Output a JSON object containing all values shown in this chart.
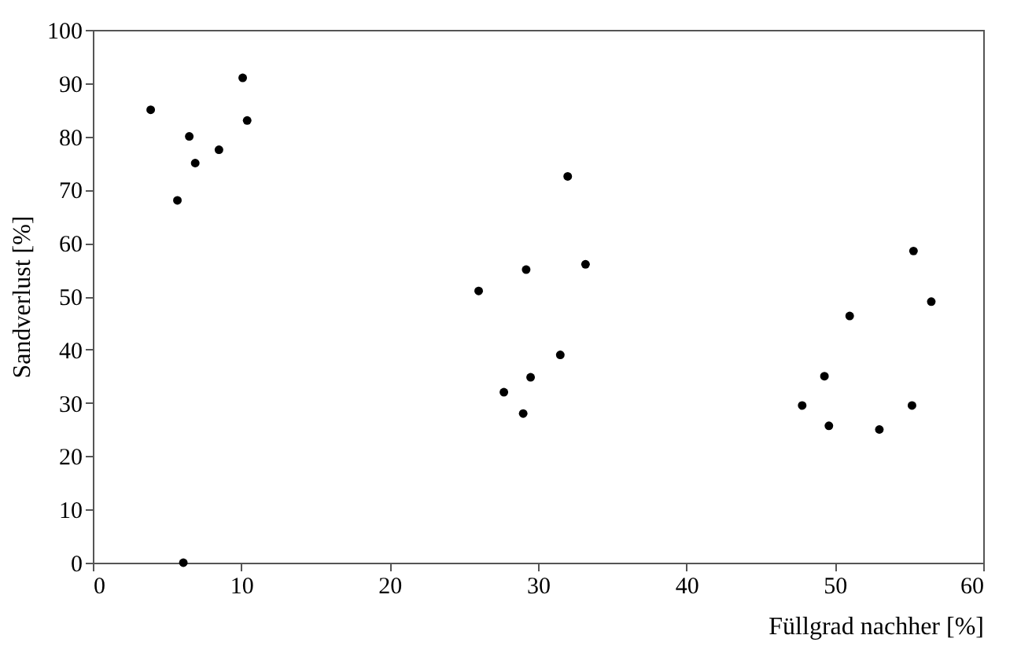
{
  "chart_data": {
    "type": "scatter",
    "xlabel": "Füllgrad nachher [%]",
    "ylabel": "Sandverlust [%]",
    "x": [
      3.9,
      6.5,
      6.9,
      8.5,
      5.7,
      10.1,
      10.4,
      6.1,
      26,
      29.2,
      32,
      33.2,
      27.7,
      29.5,
      31.5,
      29,
      47.8,
      49.3,
      49.6,
      51,
      53,
      55.3,
      55.2,
      56.5
    ],
    "values": [
      85,
      80,
      75,
      77.5,
      68,
      91,
      83,
      0,
      51,
      55,
      72.5,
      56,
      32,
      34.8,
      39,
      28,
      29.5,
      35,
      25.7,
      46.3,
      25,
      58.5,
      29.5,
      49
    ],
    "color": "#000000",
    "marker": "circle",
    "xlim": [
      0,
      60
    ],
    "xticks": [
      0,
      10,
      20,
      30,
      40,
      50,
      60
    ],
    "ylim": [
      0,
      100
    ],
    "yticks": [
      0,
      10,
      20,
      30,
      40,
      50,
      60,
      70,
      80,
      90,
      100
    ],
    "grid": false
  }
}
